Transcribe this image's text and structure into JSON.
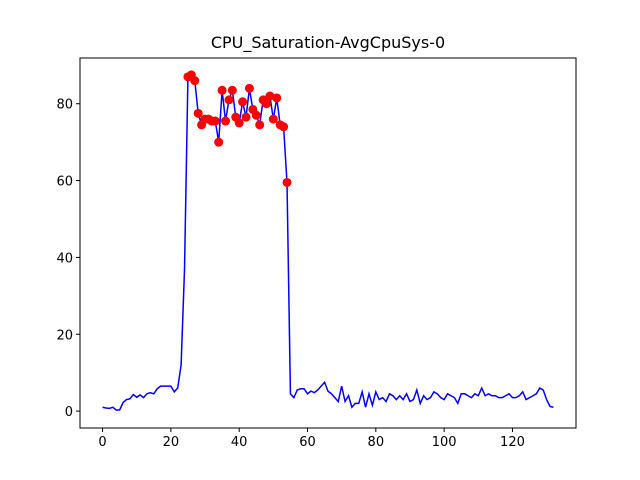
{
  "chart_data": {
    "type": "line",
    "title": "CPU_Saturation-AvgCpuSys-0",
    "x": [
      0,
      1,
      2,
      3,
      4,
      5,
      6,
      7,
      8,
      9,
      10,
      11,
      12,
      13,
      14,
      15,
      16,
      17,
      18,
      19,
      20,
      21,
      22,
      23,
      24,
      25,
      26,
      27,
      28,
      29,
      30,
      31,
      32,
      33,
      34,
      35,
      36,
      37,
      38,
      39,
      40,
      41,
      42,
      43,
      44,
      45,
      46,
      47,
      48,
      49,
      50,
      51,
      52,
      53,
      54,
      55,
      56,
      57,
      58,
      59,
      60,
      61,
      62,
      63,
      64,
      65,
      66,
      67,
      68,
      69,
      70,
      71,
      72,
      73,
      74,
      75,
      76,
      77,
      78,
      79,
      80,
      81,
      82,
      83,
      84,
      85,
      86,
      87,
      88,
      89,
      90,
      91,
      92,
      93,
      94,
      95,
      96,
      97,
      98,
      99,
      100,
      101,
      102,
      103,
      104,
      105,
      106,
      107,
      108,
      109,
      110,
      111,
      112,
      113,
      114,
      115,
      116,
      117,
      118,
      119,
      120,
      121,
      122,
      123,
      124,
      125,
      126,
      127,
      128,
      129,
      130,
      131,
      132
    ],
    "series": [
      {
        "color": "#0000ff",
        "mode": "line",
        "values": [
          1.0,
          0.8,
          0.7,
          1.0,
          0.3,
          0.3,
          2.2,
          3.0,
          3.2,
          4.3,
          3.6,
          4.2,
          3.5,
          4.5,
          4.8,
          4.5,
          5.8,
          6.5,
          6.5,
          6.5,
          6.5,
          5.0,
          6.0,
          12,
          37,
          87,
          87.5,
          86,
          77.5,
          74.5,
          76,
          76,
          75.5,
          75.5,
          70,
          83.5,
          75.5,
          81,
          83.5,
          76.5,
          75,
          80.5,
          76.5,
          84,
          78.5,
          77,
          74.5,
          81,
          80,
          82,
          76,
          81.5,
          74.5,
          74,
          59.5,
          4.5,
          3.5,
          5.5,
          5.8,
          5.8,
          4.5,
          5.2,
          4.8,
          5.5,
          6.5,
          7.5,
          5.2,
          4.5,
          3.5,
          2.5,
          6.5,
          2.5,
          4,
          1,
          2,
          2,
          5,
          1,
          4.5,
          1.5,
          5,
          3,
          3.5,
          2.5,
          4.5,
          4,
          3,
          4,
          3,
          4.5,
          2.5,
          3,
          5.5,
          2,
          4,
          3,
          3.5,
          5,
          4.5,
          3.5,
          3,
          4.5,
          4,
          3.5,
          2,
          4.5,
          4.5,
          4,
          3.5,
          4.5,
          4,
          6,
          4,
          4.5,
          4,
          4,
          3.5,
          3.5,
          4,
          4.5,
          3.5,
          3.5,
          4,
          5,
          3,
          3.5,
          4,
          4.5,
          6,
          5.5,
          3,
          1.2,
          1.0
        ]
      },
      {
        "color": "#ff0000",
        "mode": "markers",
        "x": [
          25,
          26,
          27,
          28,
          29,
          30,
          31,
          32,
          33,
          34,
          35,
          36,
          37,
          38,
          39,
          40,
          41,
          42,
          43,
          44,
          45,
          46,
          47,
          48,
          49,
          50,
          51,
          52,
          53,
          54
        ],
        "values": [
          87,
          87.5,
          86,
          77.5,
          74.5,
          76,
          76,
          75.5,
          75.5,
          70,
          83.5,
          75.5,
          81,
          83.5,
          76.5,
          75,
          80.5,
          76.5,
          84,
          78.5,
          77,
          74.5,
          81,
          80,
          82,
          76,
          81.5,
          74.5,
          74,
          59.5
        ]
      }
    ],
    "xlim": [
      -6.6,
      138.6
    ],
    "ylim": [
      -4.4,
      91.9
    ],
    "xticks": [
      0,
      20,
      40,
      60,
      80,
      100,
      120
    ],
    "yticks": [
      0,
      20,
      40,
      60,
      80
    ]
  }
}
